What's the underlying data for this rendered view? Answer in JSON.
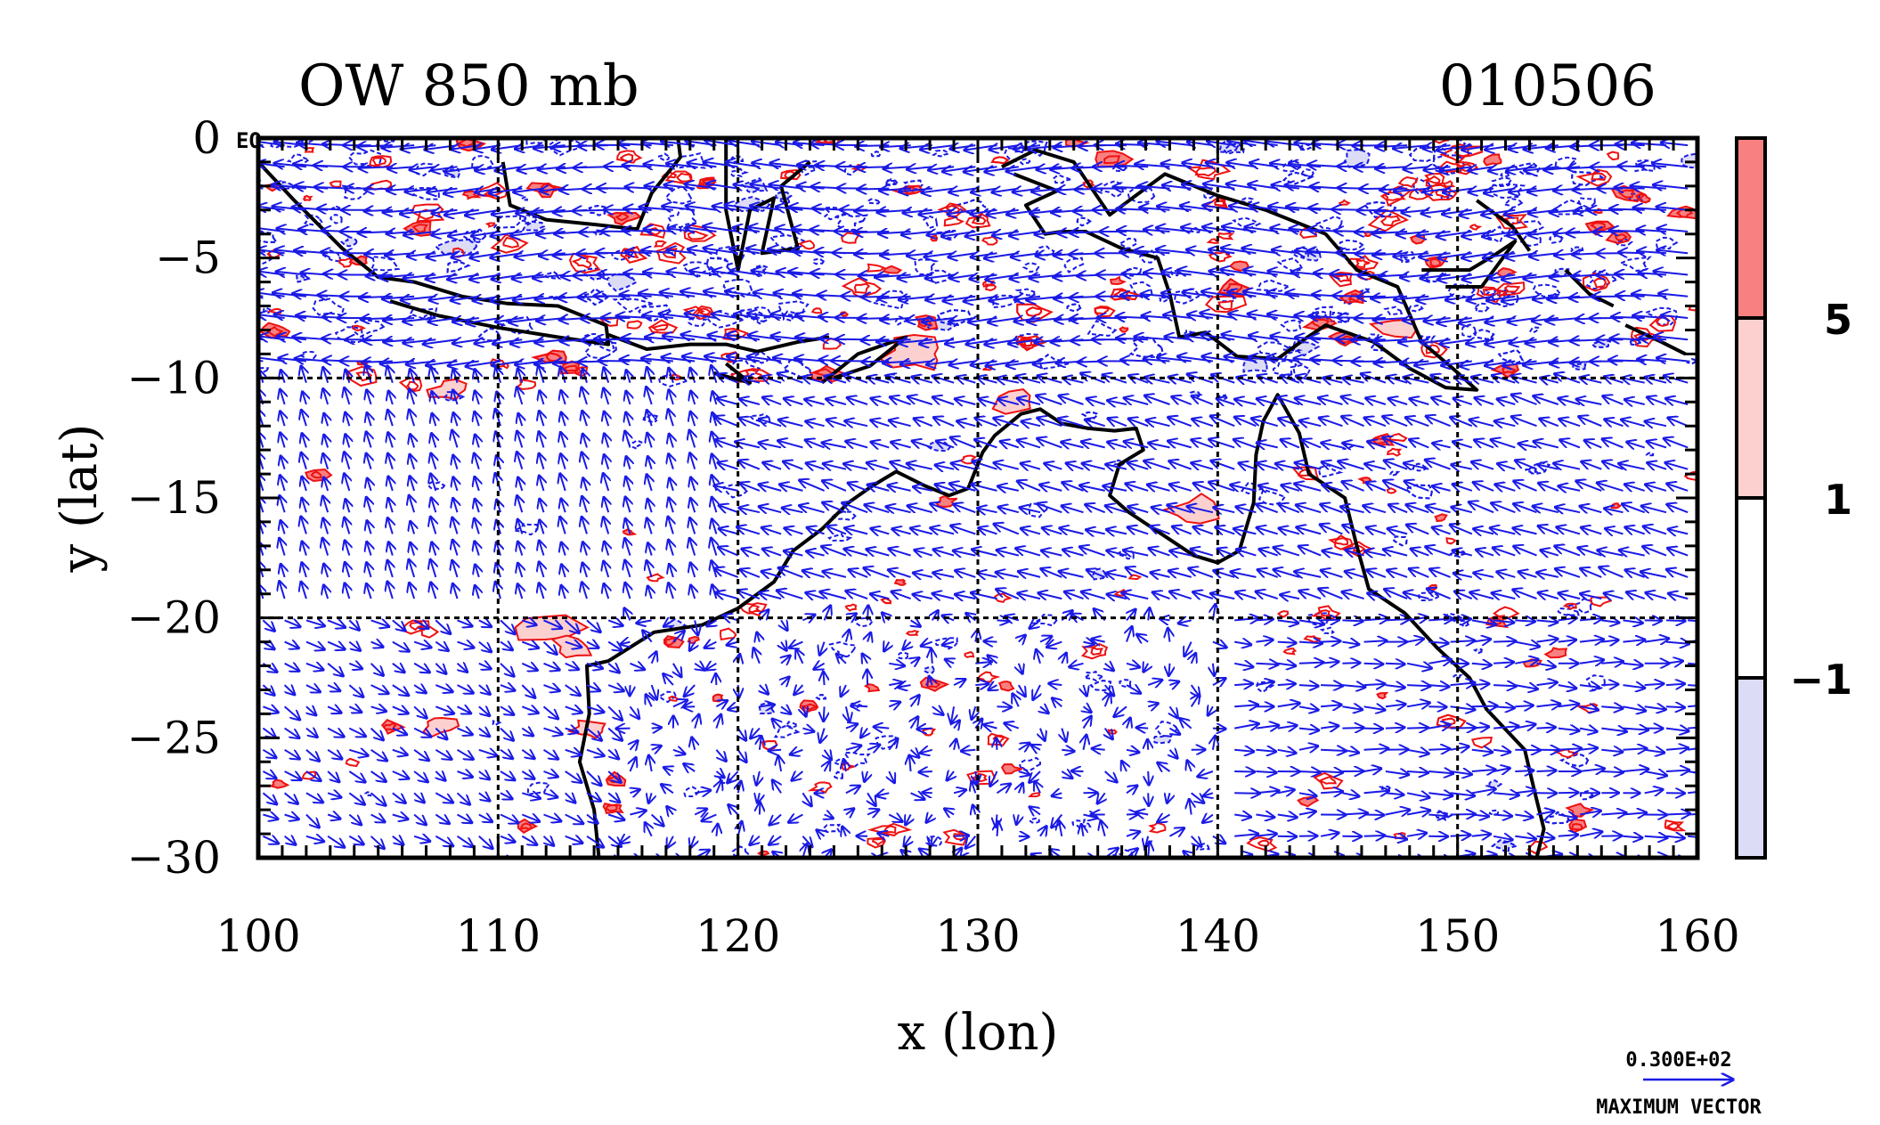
{
  "chart_data": {
    "type": "contour",
    "title": "OW 850 mb",
    "date_label": "010506",
    "xlabel": "x (lon)",
    "ylabel": "y (lat)",
    "xlim": [
      100,
      160
    ],
    "ylim": [
      -30,
      0
    ],
    "x_ticks": [
      "100",
      "110",
      "120",
      "130",
      "140",
      "150",
      "160"
    ],
    "y_ticks": [
      "0",
      "−5",
      "−10",
      "−15",
      "−20",
      "−25",
      "−30"
    ],
    "corner_label": "EQ",
    "grid": "dashed at every 10 degrees longitude and at 10S, 20S latitude",
    "colorbar": {
      "levels": [
        "5",
        "1",
        "−1"
      ],
      "colors": [
        "#f98080",
        "#fdd0d0",
        "#ffffff",
        "#dcdcf7"
      ]
    },
    "vector_key": {
      "value_label": "0.300E+02",
      "caption": "MAXIMUM VECTOR"
    },
    "colors": {
      "positive_contour": "#ee1111",
      "negative_contour": "#1a1ae6",
      "vector": "#1a1ae6",
      "coastline": "#000000"
    }
  }
}
